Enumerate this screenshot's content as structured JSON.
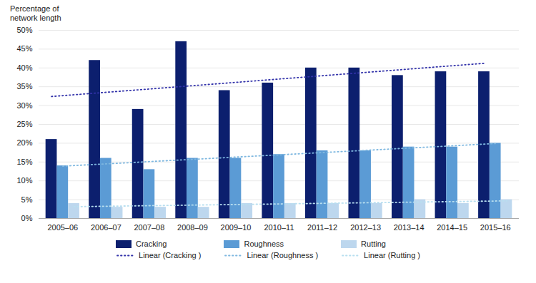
{
  "chart_data": {
    "type": "bar",
    "ylabel": "Percentage of\nnetwork length",
    "categories": [
      "2005–06",
      "2006–07",
      "2007–08",
      "2008–09",
      "2009–10",
      "2010–11",
      "2011–12",
      "2012–13",
      "2013–14",
      "2014–15",
      "2015–16"
    ],
    "series": [
      {
        "name": "Cracking",
        "type": "bar",
        "color": "#0C1F6E",
        "values": [
          21,
          42,
          29,
          47,
          34,
          36,
          40,
          40,
          38,
          39,
          39
        ]
      },
      {
        "name": "Roughness",
        "type": "bar",
        "color": "#5B9BD5",
        "values": [
          14,
          16,
          13,
          16,
          16,
          17,
          18,
          18,
          19,
          19,
          20
        ]
      },
      {
        "name": "Rutting",
        "type": "bar",
        "color": "#BDD7EE",
        "values": [
          4,
          3,
          3,
          3,
          4,
          4,
          4,
          4,
          5,
          4,
          5
        ]
      },
      {
        "name": "Linear (Cracking )",
        "type": "line",
        "line_style": "dotted",
        "color": "#3333AA",
        "values": [
          32.4091,
          33.2909,
          34.1727,
          35.0545,
          35.9364,
          36.8182,
          37.7,
          38.5818,
          39.4636,
          40.3455,
          41.2273
        ]
      },
      {
        "name": "Linear (Roughness )",
        "type": "line",
        "line_style": "dotted",
        "color": "#7FB8E0",
        "values": [
          13.9091,
          14.5091,
          15.1091,
          15.7091,
          16.3091,
          16.9091,
          17.5091,
          18.1091,
          18.7091,
          19.3091,
          19.9091
        ]
      },
      {
        "name": "Linear (Rutting )",
        "type": "line",
        "line_style": "dotted",
        "color": "#B8DFF0",
        "values": [
          3.1364,
          3.2909,
          3.4455,
          3.6,
          3.7545,
          3.9091,
          4.0636,
          4.2182,
          4.3727,
          4.5273,
          4.6818
        ]
      }
    ],
    "ylim": [
      0,
      50
    ],
    "yticks": [
      {
        "value": 0,
        "label": "0%"
      },
      {
        "value": 5,
        "label": "5%"
      },
      {
        "value": 10,
        "label": "10%"
      },
      {
        "value": 15,
        "label": "15%"
      },
      {
        "value": 20,
        "label": "20%"
      },
      {
        "value": 25,
        "label": "25%"
      },
      {
        "value": 30,
        "label": "30%"
      },
      {
        "value": 35,
        "label": "35%"
      },
      {
        "value": 40,
        "label": "40%"
      },
      {
        "value": 45,
        "label": "45%"
      },
      {
        "value": 50,
        "label": "50%"
      }
    ],
    "grid": true,
    "legend": "bottom"
  }
}
